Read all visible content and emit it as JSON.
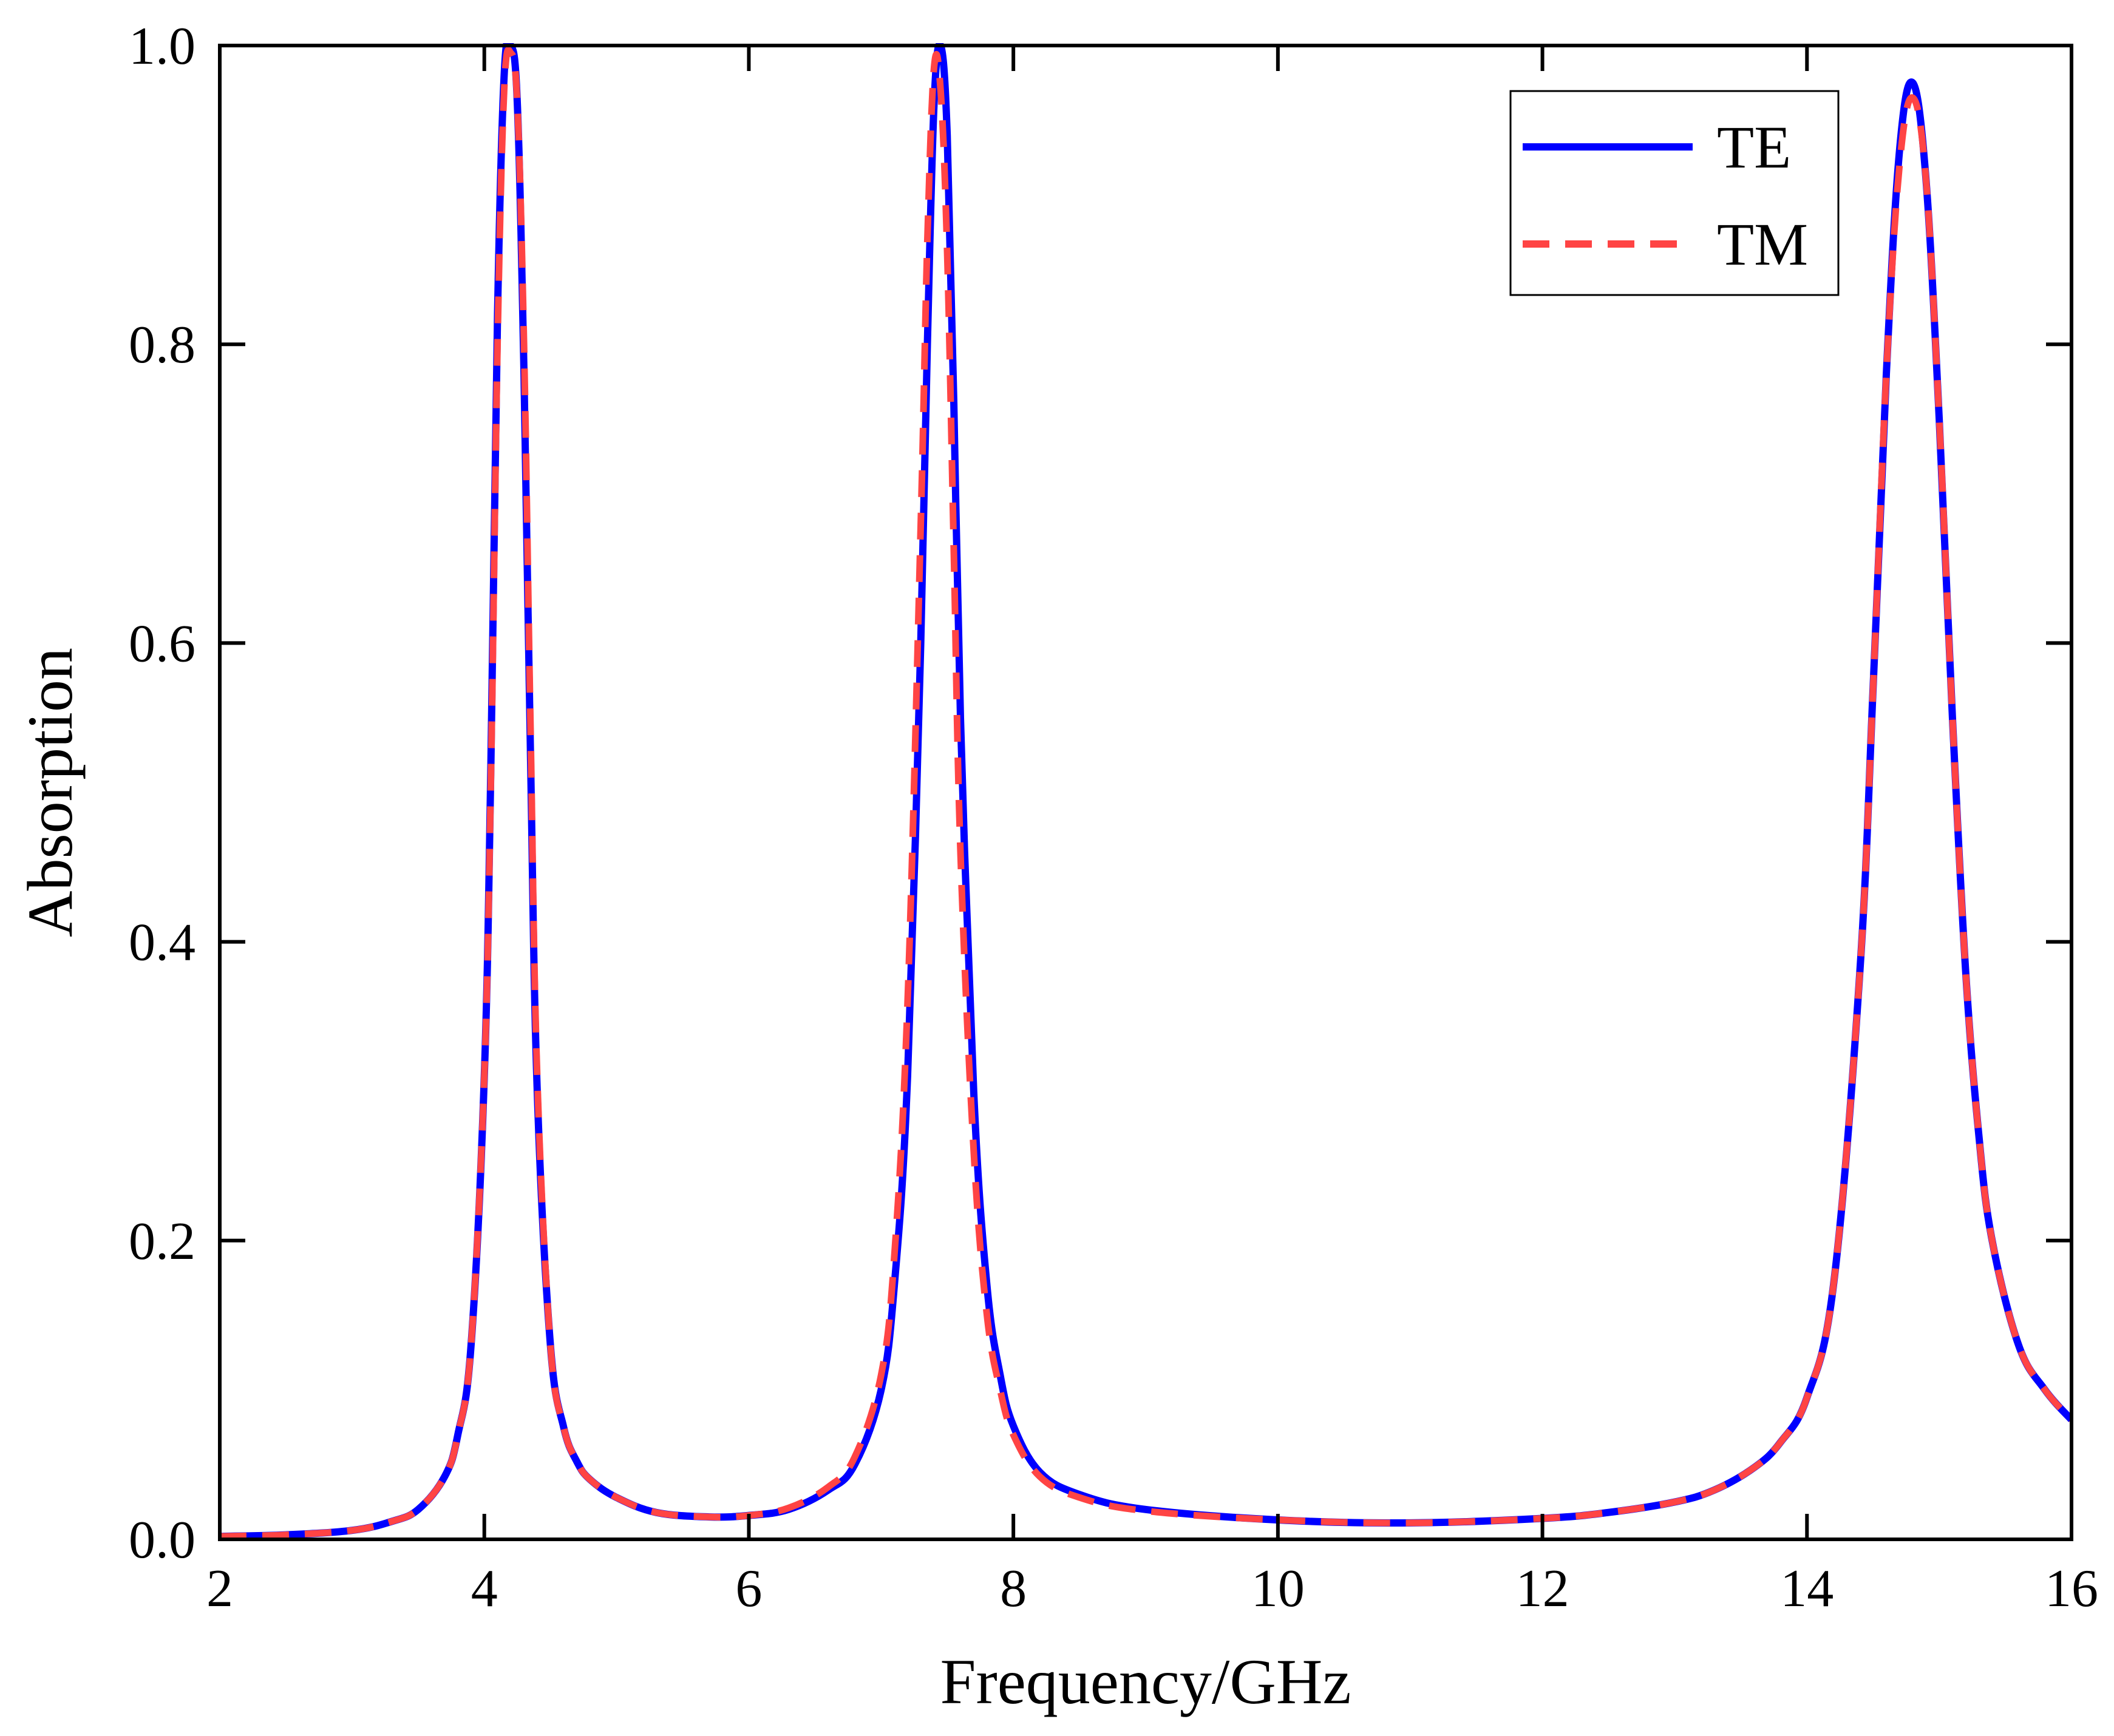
{
  "chart_data": {
    "type": "line",
    "title": "",
    "xlabel": "Frequency/GHz",
    "ylabel": "Absorption",
    "xlim": [
      2,
      16
    ],
    "ylim": [
      0,
      1.0
    ],
    "xticks": [
      2,
      4,
      6,
      8,
      10,
      12,
      14,
      16
    ],
    "xtick_labels": [
      "2",
      "4",
      "6",
      "8",
      "10",
      "12",
      "14",
      "16"
    ],
    "yticks": [
      0,
      0.2,
      0.4,
      0.6,
      0.8,
      1.0
    ],
    "ytick_labels": [
      "0.0",
      "0.2",
      "0.4",
      "0.6",
      "0.8",
      "1.0"
    ],
    "grid": false,
    "legend_position": "top-right",
    "series": [
      {
        "name": "TE",
        "color": "#0000ff",
        "style": "solid",
        "x": [
          2.0,
          2.5,
          3.0,
          3.3,
          3.5,
          3.7,
          3.8,
          3.9,
          4.0,
          4.05,
          4.1,
          4.15,
          4.2,
          4.25,
          4.3,
          4.35,
          4.4,
          4.5,
          4.6,
          4.7,
          4.8,
          5.0,
          5.3,
          5.7,
          6.0,
          6.3,
          6.6,
          6.8,
          7.0,
          7.1,
          7.2,
          7.3,
          7.35,
          7.4,
          7.45,
          7.5,
          7.55,
          7.6,
          7.7,
          7.8,
          7.9,
          8.0,
          8.2,
          8.5,
          9.0,
          10.0,
          11.0,
          12.0,
          12.5,
          13.0,
          13.3,
          13.6,
          13.8,
          14.0,
          14.2,
          14.4,
          14.5,
          14.6,
          14.7,
          14.8,
          14.9,
          15.0,
          15.1,
          15.2,
          15.3,
          15.4,
          15.6,
          15.8,
          16.0
        ],
        "values": [
          0.002,
          0.003,
          0.006,
          0.012,
          0.02,
          0.042,
          0.07,
          0.13,
          0.31,
          0.52,
          0.82,
          0.98,
          1.0,
          0.96,
          0.78,
          0.52,
          0.3,
          0.13,
          0.075,
          0.052,
          0.04,
          0.028,
          0.018,
          0.015,
          0.016,
          0.02,
          0.033,
          0.05,
          0.1,
          0.17,
          0.31,
          0.6,
          0.8,
          0.96,
          1.0,
          0.94,
          0.76,
          0.55,
          0.3,
          0.17,
          0.11,
          0.076,
          0.045,
          0.03,
          0.02,
          0.013,
          0.011,
          0.014,
          0.018,
          0.025,
          0.033,
          0.048,
          0.065,
          0.095,
          0.17,
          0.38,
          0.57,
          0.78,
          0.93,
          0.975,
          0.91,
          0.75,
          0.55,
          0.38,
          0.27,
          0.2,
          0.13,
          0.1,
          0.08
        ]
      },
      {
        "name": "TM",
        "color": "#ff4444",
        "style": "dashed",
        "x": [
          2.0,
          2.5,
          3.0,
          3.3,
          3.5,
          3.7,
          3.8,
          3.9,
          4.0,
          4.05,
          4.1,
          4.15,
          4.2,
          4.25,
          4.3,
          4.35,
          4.4,
          4.5,
          4.6,
          4.7,
          4.8,
          5.0,
          5.3,
          5.7,
          6.0,
          6.3,
          6.6,
          6.8,
          7.0,
          7.1,
          7.2,
          7.3,
          7.35,
          7.4,
          7.45,
          7.5,
          7.55,
          7.6,
          7.7,
          7.8,
          7.9,
          8.0,
          8.2,
          8.5,
          9.0,
          10.0,
          11.0,
          12.0,
          12.5,
          13.0,
          13.3,
          13.6,
          13.8,
          14.0,
          14.2,
          14.4,
          14.5,
          14.6,
          14.7,
          14.8,
          14.9,
          15.0,
          15.1,
          15.2,
          15.3,
          15.4,
          15.6,
          15.8,
          16.0
        ],
        "values": [
          0.002,
          0.003,
          0.006,
          0.012,
          0.02,
          0.042,
          0.07,
          0.13,
          0.31,
          0.51,
          0.8,
          0.97,
          0.995,
          0.96,
          0.8,
          0.54,
          0.31,
          0.13,
          0.075,
          0.052,
          0.04,
          0.028,
          0.018,
          0.015,
          0.016,
          0.021,
          0.035,
          0.055,
          0.11,
          0.19,
          0.36,
          0.68,
          0.87,
          0.985,
          0.97,
          0.86,
          0.66,
          0.46,
          0.26,
          0.15,
          0.1,
          0.07,
          0.042,
          0.028,
          0.019,
          0.013,
          0.011,
          0.014,
          0.018,
          0.025,
          0.033,
          0.048,
          0.065,
          0.095,
          0.17,
          0.38,
          0.57,
          0.78,
          0.92,
          0.965,
          0.91,
          0.75,
          0.55,
          0.38,
          0.27,
          0.2,
          0.13,
          0.1,
          0.08
        ]
      }
    ]
  }
}
